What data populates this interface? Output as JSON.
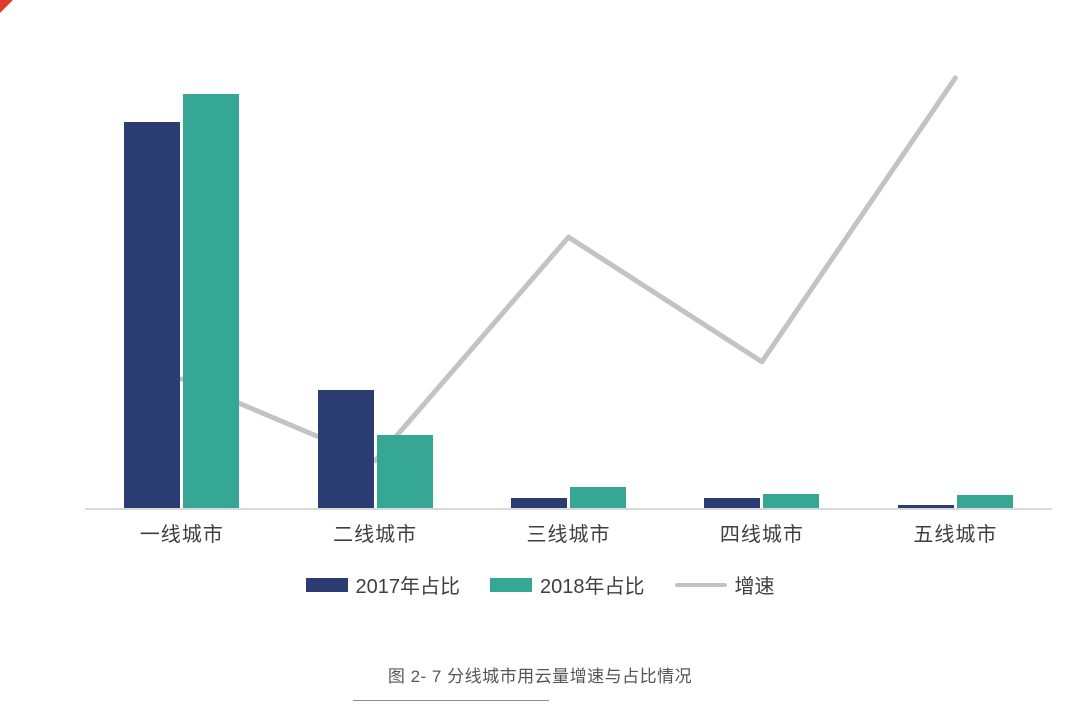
{
  "chart_data": {
    "type": "bar",
    "subtype": "grouped-bars-with-line",
    "categories": [
      "一线城市",
      "二线城市",
      "三线城市",
      "四线城市",
      "五线城市"
    ],
    "series": [
      {
        "name": "2017年占比",
        "kind": "bar",
        "color": "#2b3c72",
        "values": [
          74.5,
          22.8,
          1.9,
          1.9,
          0.5
        ]
      },
      {
        "name": "2018年占比",
        "kind": "bar",
        "color": "#36a795",
        "values": [
          80.0,
          14.1,
          4.1,
          2.7,
          2.5
        ]
      },
      {
        "name": "增速",
        "kind": "line",
        "color": "#c3c3c3",
        "values": [
          30,
          11,
          63,
          34,
          100
        ]
      }
    ],
    "bar_axis_max": 83,
    "line_axis_max": 100,
    "grid": false,
    "legend_position": "bottom",
    "title": "图 2- 7 分线城市用云量增速与占比情况",
    "xlabel": "",
    "ylabel": ""
  },
  "legend": {
    "items": [
      {
        "label": "2017年占比"
      },
      {
        "label": "2018年占比"
      },
      {
        "label": "增速"
      }
    ]
  },
  "caption": "图 2- 7 分线城市用云量增速与占比情况",
  "colors": {
    "bar_2017": "#2b3c72",
    "bar_2018": "#36a795",
    "growth_line": "#c3c3c3",
    "axis_line": "#d9d9d9",
    "corner_mark": "#e03a2f"
  }
}
